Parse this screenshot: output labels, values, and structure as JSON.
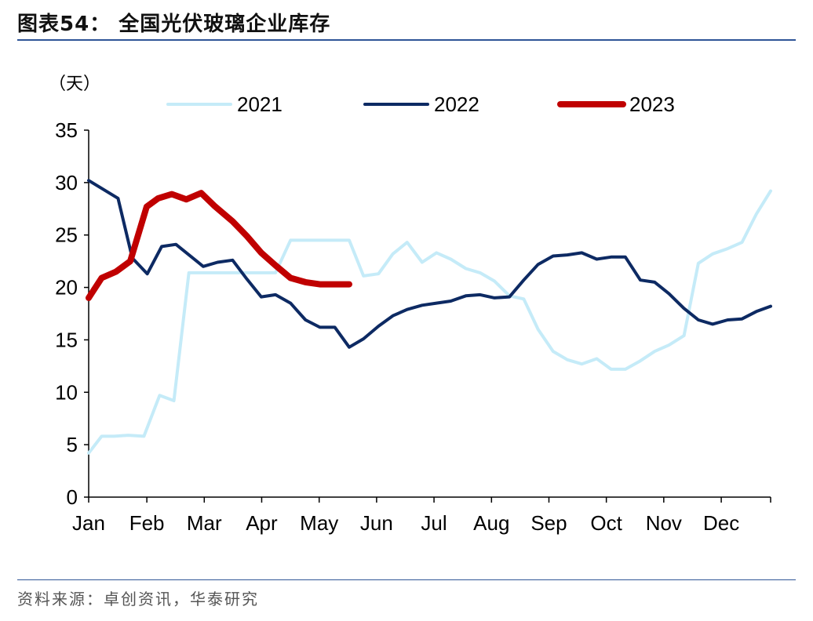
{
  "header": {
    "title": "图表54：  全国光伏玻璃企业库存"
  },
  "footer": {
    "source": "资料来源：卓创资讯，华泰研究"
  },
  "colors": {
    "s2021": "#c5ebf8",
    "s2022": "#0d2a63",
    "s2023": "#c00000",
    "rule": "#2f5597"
  },
  "chart_data": {
    "type": "line",
    "ylabel": "（天）",
    "ylim": [
      0,
      35
    ],
    "yticks": [
      0,
      5,
      10,
      15,
      20,
      25,
      30,
      35
    ],
    "x_range": [
      0,
      1
    ],
    "legend_position": "top",
    "month_labels": [
      "Jan",
      "Feb",
      "Mar",
      "Apr",
      "May",
      "Jun",
      "Jul",
      "Aug",
      "Sep",
      "Oct",
      "Nov",
      "Dec"
    ],
    "month_positions": [
      0,
      0.0853,
      0.1695,
      0.2537,
      0.338,
      0.4222,
      0.5064,
      0.5907,
      0.6749,
      0.7591,
      0.8433,
      0.9276
    ],
    "series": [
      {
        "name": "2021",
        "x": [
          0,
          0.019,
          0.037,
          0.058,
          0.081,
          0.104,
          0.125,
          0.147,
          0.168,
          0.189,
          0.211,
          0.232,
          0.253,
          0.274,
          0.296,
          0.318,
          0.339,
          0.361,
          0.382,
          0.403,
          0.425,
          0.446,
          0.467,
          0.489,
          0.51,
          0.531,
          0.553,
          0.574,
          0.595,
          0.617,
          0.638,
          0.659,
          0.681,
          0.702,
          0.723,
          0.745,
          0.766,
          0.787,
          0.809,
          0.83,
          0.851,
          0.873,
          0.894,
          0.915,
          0.937,
          0.958,
          0.979,
          1.0
        ],
        "values": [
          4.2,
          5.8,
          5.8,
          5.9,
          5.8,
          9.7,
          9.2,
          21.4,
          21.4,
          21.4,
          21.4,
          21.4,
          21.4,
          21.4,
          24.5,
          24.5,
          24.5,
          24.5,
          24.5,
          21.1,
          21.3,
          23.2,
          24.3,
          22.4,
          23.3,
          22.7,
          21.8,
          21.4,
          20.6,
          19.2,
          18.9,
          16.0,
          13.9,
          13.1,
          12.7,
          13.2,
          12.2,
          12.2,
          13.0,
          13.9,
          14.5,
          15.4,
          22.3,
          23.2,
          23.7,
          24.3,
          27.0,
          29.2
        ]
      },
      {
        "name": "2022",
        "x": [
          0,
          0.043,
          0.064,
          0.086,
          0.107,
          0.128,
          0.168,
          0.189,
          0.211,
          0.232,
          0.253,
          0.274,
          0.296,
          0.318,
          0.339,
          0.361,
          0.382,
          0.403,
          0.425,
          0.446,
          0.467,
          0.489,
          0.51,
          0.531,
          0.553,
          0.574,
          0.595,
          0.617,
          0.638,
          0.659,
          0.681,
          0.702,
          0.723,
          0.745,
          0.766,
          0.787,
          0.809,
          0.83,
          0.851,
          0.873,
          0.894,
          0.915,
          0.937,
          0.958,
          0.979,
          1.0
        ],
        "values": [
          30.2,
          28.5,
          22.8,
          21.3,
          23.9,
          24.1,
          22.0,
          22.4,
          22.6,
          20.8,
          19.1,
          19.3,
          18.5,
          16.9,
          16.2,
          16.2,
          14.3,
          15.1,
          16.3,
          17.3,
          17.9,
          18.3,
          18.5,
          18.7,
          19.2,
          19.3,
          19.0,
          19.1,
          20.7,
          22.2,
          23.0,
          23.1,
          23.3,
          22.7,
          22.9,
          22.9,
          20.7,
          20.5,
          19.4,
          18.0,
          16.9,
          16.5,
          16.9,
          17.0,
          17.7,
          18.2
        ]
      },
      {
        "name": "2023",
        "x": [
          0,
          0.019,
          0.04,
          0.061,
          0.085,
          0.102,
          0.122,
          0.143,
          0.165,
          0.184,
          0.211,
          0.232,
          0.253,
          0.274,
          0.296,
          0.318,
          0.339,
          0.361,
          0.382
        ],
        "values": [
          19.0,
          20.9,
          21.5,
          22.5,
          27.7,
          28.5,
          28.9,
          28.4,
          29.0,
          27.8,
          26.3,
          24.9,
          23.3,
          22.1,
          20.9,
          20.5,
          20.3,
          20.3,
          20.3
        ]
      }
    ]
  }
}
